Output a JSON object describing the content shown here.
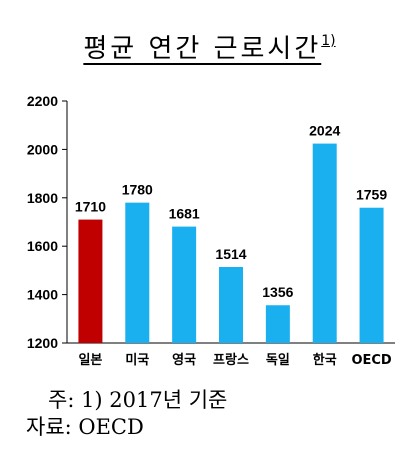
{
  "chart_data": {
    "type": "bar",
    "title": "평균 연간 근로시간",
    "title_sup": "1)",
    "categories": [
      "일본",
      "미국",
      "영국",
      "프랑스",
      "독일",
      "한국",
      "OECD"
    ],
    "values": [
      1710,
      1780,
      1681,
      1514,
      1356,
      2024,
      1759
    ],
    "value_labels": [
      "1710",
      "1780",
      "1681",
      "1514",
      "1356",
      "2024",
      "1759"
    ],
    "ylim": [
      1200,
      2200
    ],
    "yticks": [
      1200,
      1400,
      1600,
      1800,
      2000,
      2200
    ],
    "ytick_labels": [
      "1200",
      "1400",
      "1600",
      "1800",
      "2000",
      "2200"
    ],
    "xlabel": "",
    "ylabel": "",
    "grid": false,
    "legend": "none",
    "colors": {
      "highlight": "#c00000",
      "default": "#1ab0f0",
      "axis": "#000000"
    },
    "highlight_index": 0
  },
  "notes": {
    "note1": "주: 1) 2017년 기준",
    "source": "자료: OECD"
  }
}
